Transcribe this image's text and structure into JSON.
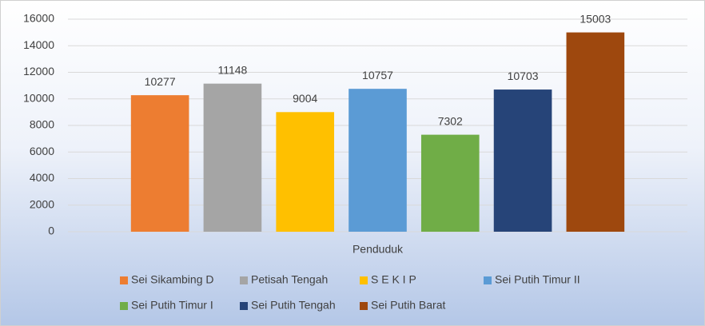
{
  "chart_data": {
    "type": "bar",
    "categories": [
      "Penduduk"
    ],
    "series": [
      {
        "name": "Sei Sikambing D",
        "color": "#ED7D31",
        "values": [
          10277
        ]
      },
      {
        "name": "Petisah Tengah",
        "color": "#A5A5A5",
        "values": [
          11148
        ]
      },
      {
        "name": "S E K I P",
        "color": "#FFC000",
        "values": [
          9004
        ]
      },
      {
        "name": "Sei Putih Timur II",
        "color": "#5B9BD5",
        "values": [
          10757
        ]
      },
      {
        "name": "Sei Putih Timur I",
        "color": "#70AD47",
        "values": [
          7302
        ]
      },
      {
        "name": "Sei Putih Tengah",
        "color": "#264478",
        "values": [
          10703
        ]
      },
      {
        "name": "Sei Putih Barat",
        "color": "#9E480E",
        "values": [
          15003
        ]
      }
    ],
    "ylim": [
      0,
      16000
    ],
    "yticks": [
      0,
      2000,
      4000,
      6000,
      8000,
      10000,
      12000,
      14000,
      16000
    ],
    "grid": true,
    "legend": "bottom"
  }
}
